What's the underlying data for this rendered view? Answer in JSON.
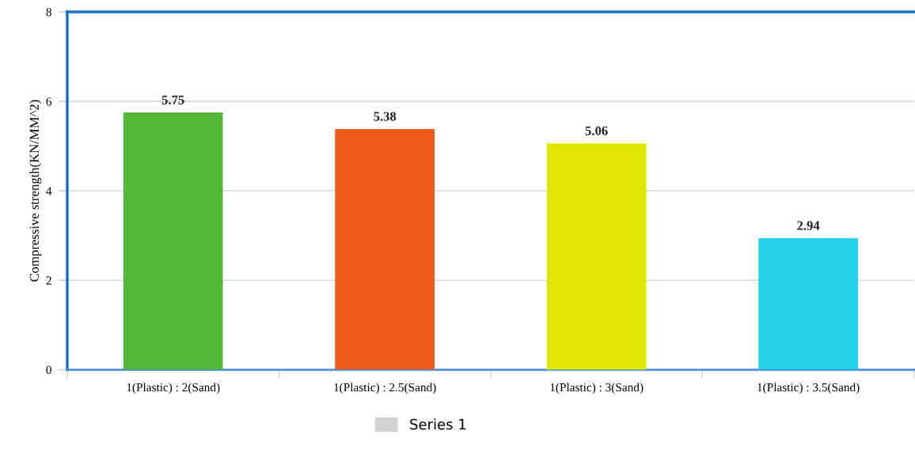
{
  "chart_data": {
    "type": "bar",
    "categories": [
      "1(Plastic) : 2(Sand)",
      "1(Plastic) : 2.5(Sand)",
      "1(Plastic) : 3(Sand)",
      "1(Plastic) : 3.5(Sand)"
    ],
    "series": [
      {
        "name": "Series 1",
        "color": "#d3d3d3",
        "colors": [
          "#55b737",
          "#f05a1a",
          "#e2e600",
          "#25d0ea"
        ],
        "values": [
          5.75,
          5.38,
          5.06,
          2.94
        ]
      }
    ],
    "ylabel": "Compressive strength(KN/MM^2)",
    "ylim": [
      0,
      8
    ],
    "yticks": [
      0,
      2,
      4,
      6,
      8
    ],
    "grid": "y",
    "legend": "bottom",
    "data_labels": true
  }
}
